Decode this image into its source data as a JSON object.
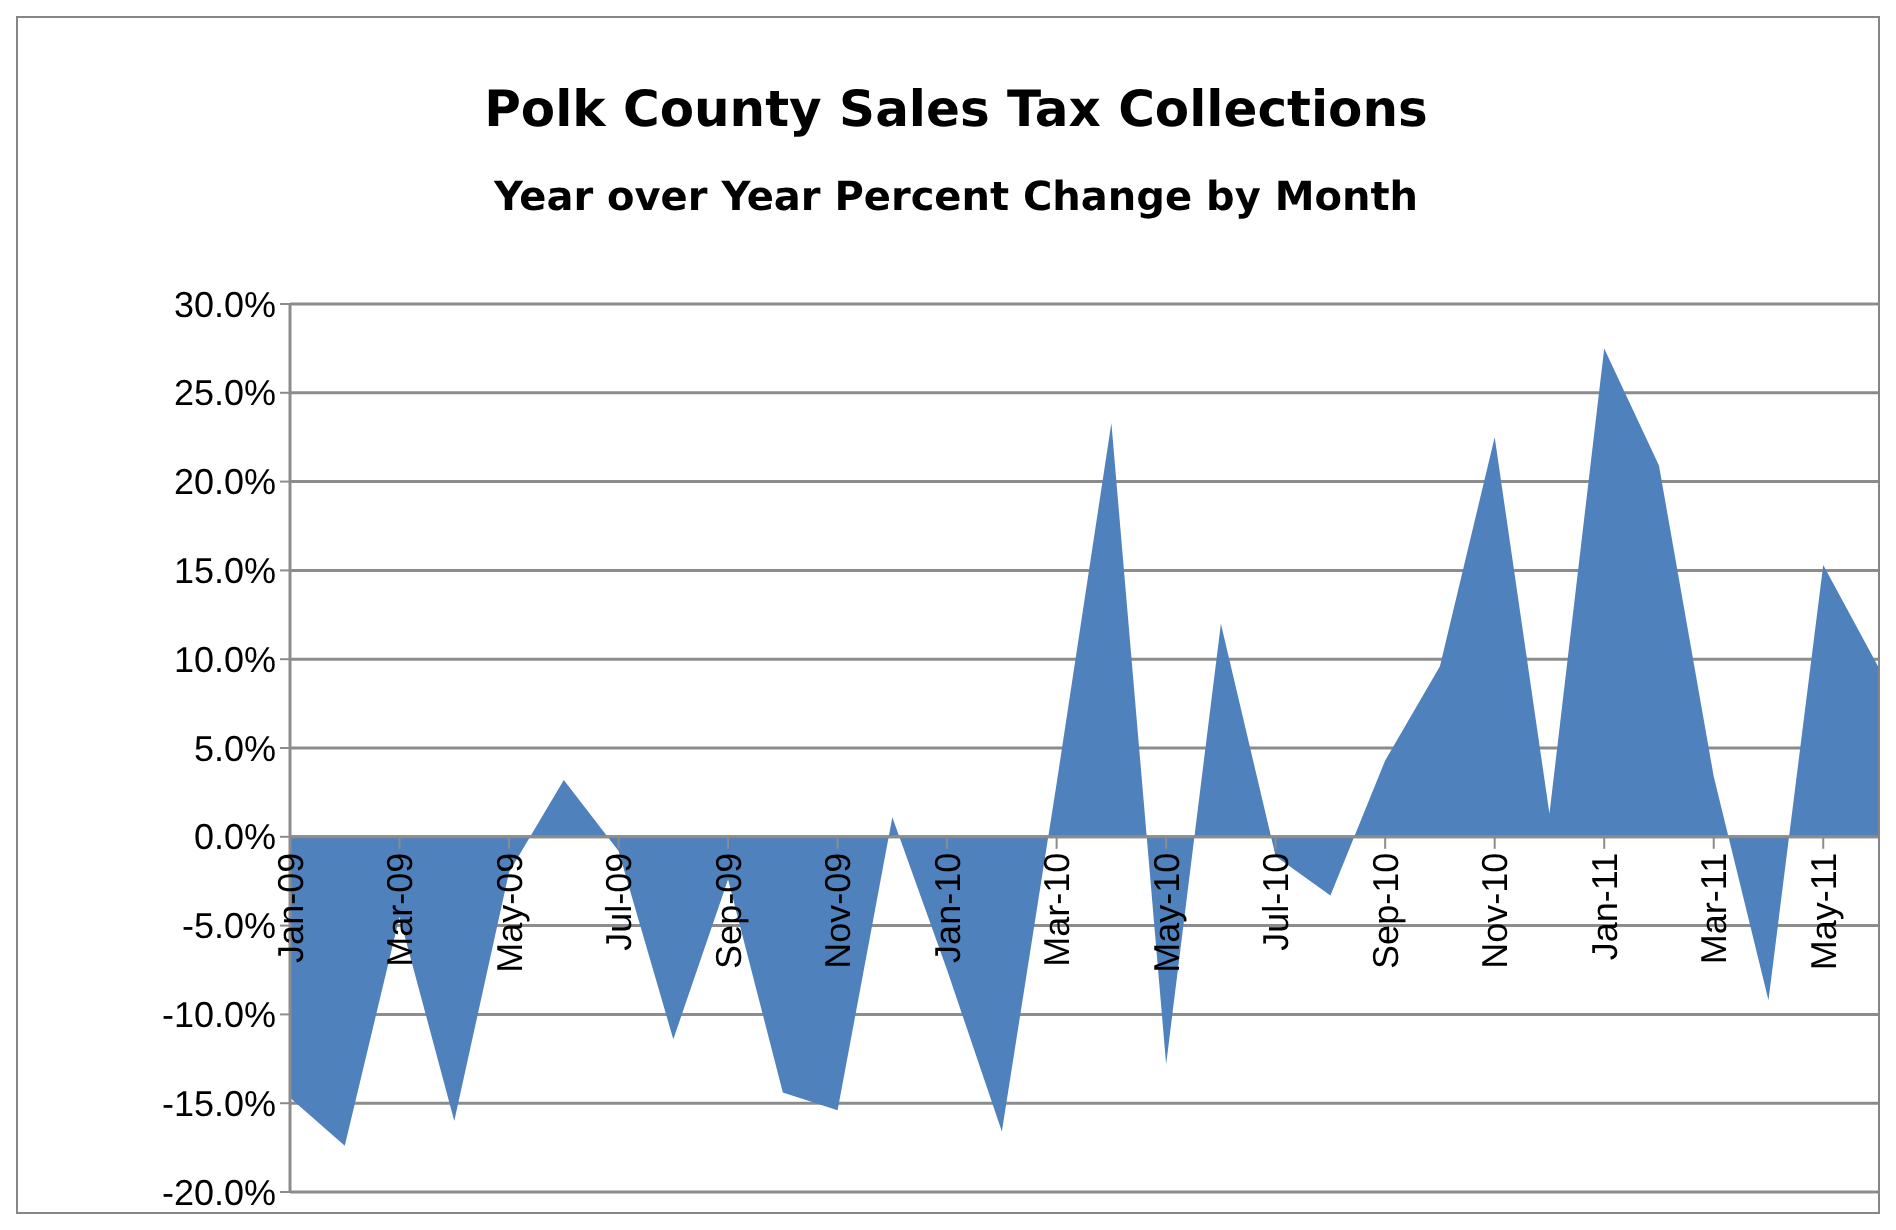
{
  "chart_data": {
    "type": "area",
    "title": "Polk County Sales Tax Collections",
    "subtitle": "Year over Year Percent Change by Month",
    "categories": [
      "Jan-09",
      null,
      "Mar-09",
      null,
      "May-09",
      null,
      "Jul-09",
      null,
      "Sep-09",
      null,
      "Nov-09",
      null,
      "Jan-10",
      null,
      "Mar-10",
      null,
      "May-10",
      null,
      "Jul-10",
      null,
      "Sep-10",
      null,
      "Nov-10",
      null,
      "Jan-11",
      null,
      "Mar-11",
      null,
      "May-11",
      null
    ],
    "series": [
      {
        "color": "#4f81bd",
        "values": [
          -14.7,
          -17.4,
          -4.5,
          -16.0,
          -2.0,
          3.2,
          -0.8,
          -11.4,
          -2.4,
          -14.4,
          -15.4,
          1.1,
          -7.5,
          -16.6,
          3.0,
          23.3,
          -12.8,
          12.0,
          -1.1,
          -3.3,
          4.3,
          9.6,
          22.5,
          1.3,
          27.5,
          20.9,
          3.4,
          -9.2,
          15.3,
          9.6
        ]
      }
    ],
    "ylim": [
      -20,
      30
    ],
    "yticks": [
      {
        "value": -20,
        "label": "-20.0%"
      },
      {
        "value": -15,
        "label": "-15.0%"
      },
      {
        "value": -10,
        "label": "-10.0%"
      },
      {
        "value": -5,
        "label": "-5.0%"
      },
      {
        "value": 0,
        "label": "0.0%"
      },
      {
        "value": 5,
        "label": "5.0%"
      },
      {
        "value": 10,
        "label": "10.0%"
      },
      {
        "value": 15,
        "label": "15.0%"
      },
      {
        "value": 20,
        "label": "20.0%"
      },
      {
        "value": 25,
        "label": "25.0%"
      },
      {
        "value": 30,
        "label": "30.0%"
      }
    ],
    "grid": "y"
  }
}
